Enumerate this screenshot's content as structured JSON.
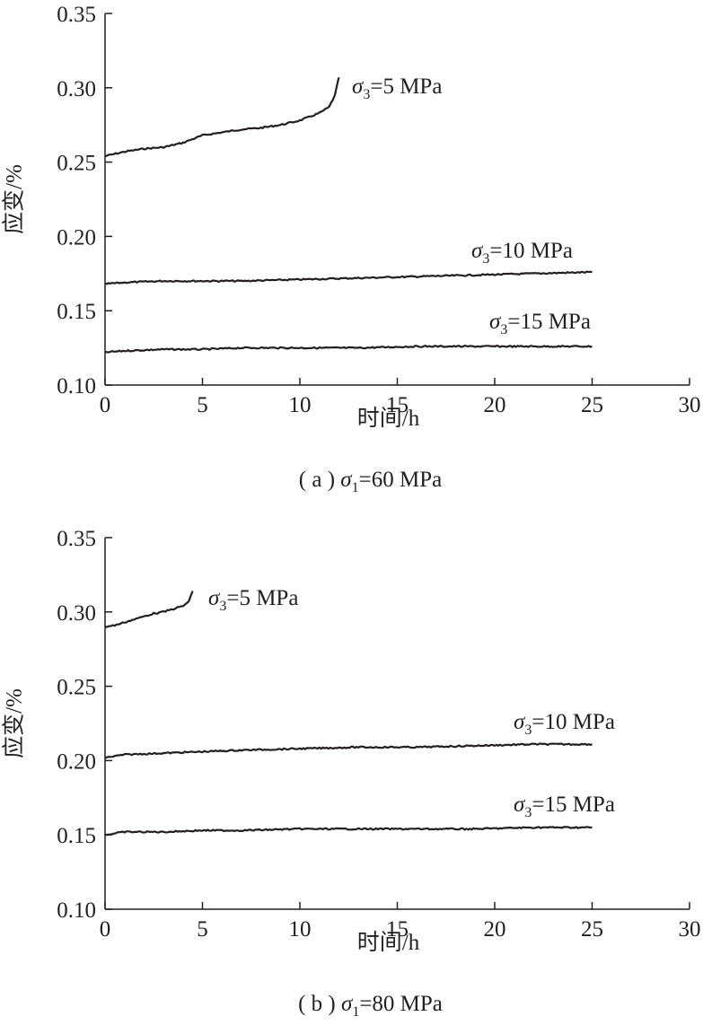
{
  "chart_data": [
    {
      "type": "line",
      "panel": "a",
      "caption": "( a ) σ1=60 MPa",
      "xlabel": "时间/h",
      "ylabel": "应变/%",
      "xlim": [
        0,
        30
      ],
      "ylim": [
        0.1,
        0.35
      ],
      "xticks": [
        "0",
        "5",
        "10",
        "15",
        "20",
        "25",
        "30"
      ],
      "yticks": [
        "0.10",
        "0.15",
        "0.20",
        "0.25",
        "0.30",
        "0.35"
      ],
      "series": [
        {
          "name": "σ3=5 MPa",
          "x": [
            0,
            1,
            2,
            3,
            4,
            5,
            6,
            7,
            8,
            9,
            10,
            11,
            11.5,
            11.8,
            12
          ],
          "values": [
            0.254,
            0.257,
            0.259,
            0.26,
            0.263,
            0.268,
            0.27,
            0.272,
            0.273,
            0.275,
            0.278,
            0.283,
            0.287,
            0.295,
            0.307
          ]
        },
        {
          "name": "σ3=10 MPa",
          "x": [
            0,
            1,
            3,
            5,
            7,
            10,
            13,
            16,
            19,
            22,
            25
          ],
          "values": [
            0.168,
            0.169,
            0.17,
            0.17,
            0.17,
            0.171,
            0.172,
            0.173,
            0.174,
            0.175,
            0.176
          ]
        },
        {
          "name": "σ3=15 MPa",
          "x": [
            0,
            1,
            3,
            5,
            7,
            10,
            13,
            16,
            19,
            22,
            25
          ],
          "values": [
            0.122,
            0.123,
            0.124,
            0.124,
            0.125,
            0.125,
            0.125,
            0.126,
            0.126,
            0.126,
            0.126
          ]
        }
      ]
    },
    {
      "type": "line",
      "panel": "b",
      "caption": "( b ) σ1=80 MPa",
      "xlabel": "时间/h",
      "ylabel": "应变/%",
      "xlim": [
        0,
        30
      ],
      "ylim": [
        0.1,
        0.35
      ],
      "xticks": [
        "0",
        "5",
        "10",
        "15",
        "20",
        "25",
        "30"
      ],
      "yticks": [
        "0.10",
        "0.15",
        "0.20",
        "0.25",
        "0.30",
        "0.35"
      ],
      "series": [
        {
          "name": "σ3=5 MPa",
          "x": [
            0,
            0.5,
            1,
            1.5,
            2,
            2.5,
            3,
            3.5,
            4,
            4.3,
            4.5
          ],
          "values": [
            0.29,
            0.291,
            0.293,
            0.295,
            0.297,
            0.299,
            0.3,
            0.302,
            0.304,
            0.307,
            0.314
          ]
        },
        {
          "name": "σ3=10 MPa",
          "x": [
            0,
            1,
            3,
            5,
            7,
            10,
            13,
            16,
            19,
            22,
            25
          ],
          "values": [
            0.202,
            0.204,
            0.205,
            0.206,
            0.207,
            0.208,
            0.209,
            0.209,
            0.21,
            0.211,
            0.211
          ]
        },
        {
          "name": "σ3=15 MPa",
          "x": [
            0,
            1,
            3,
            5,
            7,
            10,
            13,
            16,
            19,
            22,
            25
          ],
          "values": [
            0.15,
            0.152,
            0.152,
            0.153,
            0.153,
            0.154,
            0.154,
            0.154,
            0.154,
            0.155,
            0.155
          ]
        }
      ]
    }
  ]
}
